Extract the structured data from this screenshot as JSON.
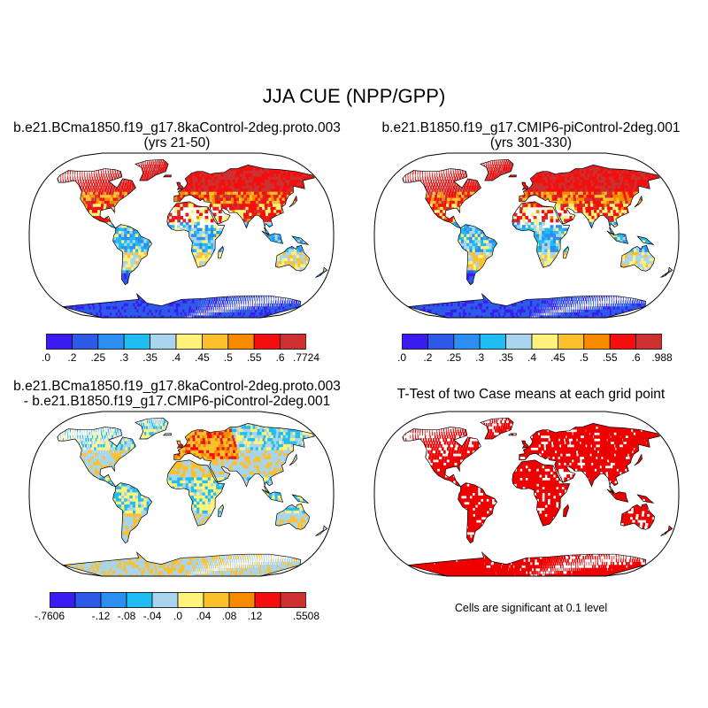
{
  "figure": {
    "title": "JJA CUE (NPP/GPP)"
  },
  "panels": [
    {
      "id": "case1",
      "title_line1": "b.e21.BCma1850.f19_g17.8kaControl-2deg.proto.003",
      "title_line2": "(yrs 21-50)",
      "kind": "field",
      "colorbar": {
        "colors": [
          "#3b1cf0",
          "#2d5be8",
          "#2b8ef0",
          "#20bdf2",
          "#a8d4ee",
          "#fff27a",
          "#fbc02d",
          "#f88a00",
          "#f40e0e",
          "#cd3030"
        ],
        "labels": [
          ".0",
          ".2",
          ".25",
          ".3",
          ".35",
          ".4",
          ".45",
          ".5",
          ".55",
          ".6",
          ".7724"
        ]
      }
    },
    {
      "id": "case2",
      "title_line1": "b.e21.B1850.f19_g17.CMIP6-piControl-2deg.001",
      "title_line2": "(yrs 301-330)",
      "kind": "field",
      "colorbar": {
        "colors": [
          "#3b1cf0",
          "#2d5be8",
          "#2b8ef0",
          "#20bdf2",
          "#a8d4ee",
          "#fff27a",
          "#fbc02d",
          "#f88a00",
          "#f40e0e",
          "#cd3030"
        ],
        "labels": [
          ".0",
          ".2",
          ".25",
          ".3",
          ".35",
          ".4",
          ".45",
          ".5",
          ".55",
          ".6",
          ".988"
        ]
      }
    },
    {
      "id": "diff",
      "title_line1": "b.e21.BCma1850.f19_g17.8kaControl-2deg.proto.003",
      "title_line2": "- b.e21.B1850.f19_g17.CMIP6-piControl-2deg.001",
      "kind": "difference",
      "colorbar": {
        "colors": [
          "#3b1cf0",
          "#2d5be8",
          "#2b8ef0",
          "#20bdf2",
          "#a8d4ee",
          "#fff27a",
          "#fbc02d",
          "#f88a00",
          "#f40e0e",
          "#cd3030"
        ],
        "labels": [
          "-.7606",
          "",
          "-.12",
          "-.08",
          "-.04",
          ".0",
          ".04",
          ".08",
          ".12",
          "",
          ".5508"
        ]
      }
    },
    {
      "id": "ttest",
      "title_line1": "T-Test of two Case means at each grid point",
      "title_line2": "",
      "kind": "significance",
      "note": "Cells are significant at 0.1 level",
      "sig_color": "#ee0000"
    }
  ]
}
